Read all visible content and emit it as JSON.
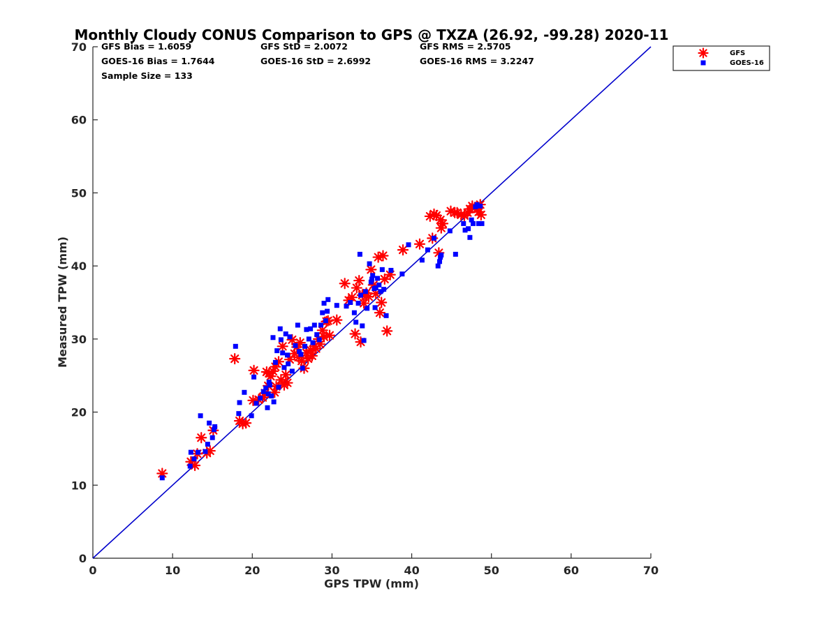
{
  "chart_data": {
    "type": "scatter",
    "title": "Monthly Cloudy CONUS Comparison to GPS @ TXZA (26.92, -99.28) 2020-11",
    "xlabel": "GPS TPW (mm)",
    "ylabel": "Measured TPW (mm)",
    "xlim": [
      0,
      70
    ],
    "ylim": [
      0,
      70
    ],
    "xticks": [
      "0",
      "10",
      "20",
      "30",
      "40",
      "50",
      "60",
      "70"
    ],
    "yticks": [
      "0",
      "10",
      "20",
      "30",
      "40",
      "50",
      "60",
      "70"
    ],
    "grid": false,
    "legend_position": "top-right (outside plot)",
    "stats": [
      "GFS Bias = 1.6059",
      "GFS StD = 2.0072",
      "GFS RMS = 2.5705",
      "GOES-16 Bias = 1.7644",
      "GOES-16 StD = 2.6992",
      "GOES-16 RMS = 3.2247",
      "Sample Size = 133"
    ],
    "reference_line": {
      "x": [
        0,
        70
      ],
      "y": [
        0,
        70
      ],
      "color": "#0000cc"
    },
    "series": [
      {
        "name": "GFS",
        "marker": "asterisk",
        "color": "#ff0000",
        "points": [
          [
            8.7,
            11.6
          ],
          [
            12.3,
            13.2
          ],
          [
            12.8,
            12.7
          ],
          [
            13.1,
            14.3
          ],
          [
            13.6,
            16.5
          ],
          [
            14.3,
            14.4
          ],
          [
            14.7,
            14.7
          ],
          [
            15.1,
            17.5
          ],
          [
            17.8,
            27.3
          ],
          [
            18.4,
            18.8
          ],
          [
            18.8,
            18.4
          ],
          [
            19.2,
            18.5
          ],
          [
            20.1,
            21.6
          ],
          [
            20.2,
            25.7
          ],
          [
            20.8,
            21.7
          ],
          [
            21.3,
            22.0
          ],
          [
            21.6,
            22.6
          ],
          [
            21.8,
            25.5
          ],
          [
            22.0,
            23.6
          ],
          [
            22.1,
            25.3
          ],
          [
            22.3,
            24.9
          ],
          [
            22.6,
            25.6
          ],
          [
            22.8,
            22.7
          ],
          [
            22.9,
            26.2
          ],
          [
            23.0,
            23.5
          ],
          [
            23.3,
            26.9
          ],
          [
            23.6,
            24.4
          ],
          [
            23.8,
            29.0
          ],
          [
            24.0,
            23.7
          ],
          [
            24.2,
            25.1
          ],
          [
            24.4,
            24.0
          ],
          [
            24.7,
            27.2
          ],
          [
            25.0,
            29.9
          ],
          [
            25.3,
            28.0
          ],
          [
            25.6,
            28.9
          ],
          [
            25.8,
            27.5
          ],
          [
            26.0,
            29.5
          ],
          [
            26.2,
            27.0
          ],
          [
            26.5,
            26.0
          ],
          [
            26.8,
            28.1
          ],
          [
            27.0,
            27.3
          ],
          [
            27.3,
            28.5
          ],
          [
            27.5,
            27.7
          ],
          [
            27.8,
            29.0
          ],
          [
            28.0,
            28.7
          ],
          [
            28.3,
            30.0
          ],
          [
            28.5,
            29.3
          ],
          [
            28.8,
            31.2
          ],
          [
            29.0,
            30.3
          ],
          [
            29.3,
            32.4
          ],
          [
            29.5,
            32.5
          ],
          [
            29.7,
            30.5
          ],
          [
            30.6,
            32.6
          ],
          [
            31.6,
            37.6
          ],
          [
            32.1,
            35.3
          ],
          [
            32.5,
            35.7
          ],
          [
            32.9,
            30.7
          ],
          [
            33.1,
            37.0
          ],
          [
            33.4,
            38.0
          ],
          [
            33.6,
            29.6
          ],
          [
            33.8,
            36.0
          ],
          [
            34.0,
            34.9
          ],
          [
            34.3,
            36.3
          ],
          [
            34.6,
            35.8
          ],
          [
            34.9,
            39.5
          ],
          [
            35.2,
            37.4
          ],
          [
            35.5,
            36.2
          ],
          [
            35.8,
            41.2
          ],
          [
            36.0,
            33.6
          ],
          [
            36.2,
            35.0
          ],
          [
            36.4,
            41.4
          ],
          [
            36.6,
            38.2
          ],
          [
            36.9,
            31.1
          ],
          [
            37.3,
            38.8
          ],
          [
            38.9,
            42.2
          ],
          [
            41.0,
            43.0
          ],
          [
            42.3,
            46.8
          ],
          [
            42.6,
            43.8
          ],
          [
            42.8,
            47.1
          ],
          [
            43.1,
            46.9
          ],
          [
            43.4,
            41.8
          ],
          [
            43.6,
            46.3
          ],
          [
            43.7,
            45.2
          ],
          [
            43.9,
            45.8
          ],
          [
            44.9,
            47.5
          ],
          [
            45.4,
            47.3
          ],
          [
            45.7,
            47.3
          ],
          [
            46.2,
            47.0
          ],
          [
            46.6,
            46.9
          ],
          [
            47.0,
            47.3
          ],
          [
            47.3,
            47.8
          ],
          [
            47.6,
            48.2
          ],
          [
            47.9,
            48.0
          ],
          [
            48.2,
            47.8
          ],
          [
            48.4,
            47.4
          ],
          [
            48.6,
            48.4
          ],
          [
            48.7,
            47.0
          ]
        ]
      },
      {
        "name": "GOES-16",
        "marker": "square",
        "color": "#0000ff",
        "points": [
          [
            8.7,
            11.0
          ],
          [
            12.2,
            12.6
          ],
          [
            12.3,
            14.5
          ],
          [
            12.7,
            13.6
          ],
          [
            13.2,
            14.5
          ],
          [
            13.5,
            19.5
          ],
          [
            14.1,
            14.6
          ],
          [
            14.4,
            15.6
          ],
          [
            14.6,
            18.5
          ],
          [
            15.0,
            16.5
          ],
          [
            15.2,
            17.6
          ],
          [
            15.3,
            18.0
          ],
          [
            17.9,
            29.0
          ],
          [
            18.3,
            19.8
          ],
          [
            18.4,
            21.3
          ],
          [
            19.0,
            22.7
          ],
          [
            19.9,
            19.5
          ],
          [
            20.2,
            24.8
          ],
          [
            20.5,
            21.2
          ],
          [
            21.0,
            21.9
          ],
          [
            21.4,
            22.8
          ],
          [
            21.7,
            23.3
          ],
          [
            21.9,
            20.6
          ],
          [
            22.0,
            22.5
          ],
          [
            22.1,
            24.1
          ],
          [
            22.2,
            23.7
          ],
          [
            22.4,
            22.2
          ],
          [
            22.6,
            30.2
          ],
          [
            22.7,
            21.4
          ],
          [
            22.9,
            26.8
          ],
          [
            23.1,
            28.4
          ],
          [
            23.3,
            23.4
          ],
          [
            23.5,
            31.4
          ],
          [
            23.6,
            29.9
          ],
          [
            23.8,
            28.1
          ],
          [
            24.0,
            26.1
          ],
          [
            24.2,
            30.7
          ],
          [
            24.4,
            27.8
          ],
          [
            24.5,
            26.6
          ],
          [
            24.7,
            30.3
          ],
          [
            25.0,
            25.6
          ],
          [
            25.4,
            29.1
          ],
          [
            25.7,
            31.9
          ],
          [
            25.9,
            28.3
          ],
          [
            26.1,
            27.9
          ],
          [
            26.3,
            26.0
          ],
          [
            26.6,
            29.0
          ],
          [
            26.8,
            31.3
          ],
          [
            27.1,
            30.0
          ],
          [
            27.3,
            31.4
          ],
          [
            27.6,
            29.5
          ],
          [
            27.8,
            31.9
          ],
          [
            28.1,
            30.6
          ],
          [
            28.4,
            29.9
          ],
          [
            28.6,
            31.9
          ],
          [
            28.8,
            33.6
          ],
          [
            29.0,
            34.9
          ],
          [
            29.2,
            32.5
          ],
          [
            29.4,
            33.8
          ],
          [
            29.5,
            35.4
          ],
          [
            30.6,
            34.6
          ],
          [
            31.8,
            34.5
          ],
          [
            32.3,
            35.0
          ],
          [
            32.8,
            33.6
          ],
          [
            33.0,
            32.3
          ],
          [
            33.3,
            34.9
          ],
          [
            33.5,
            41.6
          ],
          [
            33.6,
            36.0
          ],
          [
            33.8,
            31.8
          ],
          [
            34.0,
            29.8
          ],
          [
            34.2,
            36.5
          ],
          [
            34.4,
            34.2
          ],
          [
            34.7,
            40.3
          ],
          [
            34.9,
            37.8
          ],
          [
            35.0,
            38.2
          ],
          [
            35.1,
            38.7
          ],
          [
            35.3,
            36.9
          ],
          [
            35.4,
            34.3
          ],
          [
            35.5,
            37.0
          ],
          [
            35.7,
            38.3
          ],
          [
            35.9,
            37.4
          ],
          [
            36.1,
            36.5
          ],
          [
            36.3,
            39.5
          ],
          [
            36.5,
            36.8
          ],
          [
            36.8,
            33.2
          ],
          [
            37.4,
            39.4
          ],
          [
            38.8,
            38.9
          ],
          [
            39.6,
            42.9
          ],
          [
            41.3,
            40.8
          ],
          [
            42.0,
            42.2
          ],
          [
            42.8,
            43.8
          ],
          [
            43.3,
            40.0
          ],
          [
            43.5,
            40.6
          ],
          [
            43.6,
            41.2
          ],
          [
            43.7,
            41.5
          ],
          [
            44.8,
            44.8
          ],
          [
            45.5,
            41.6
          ],
          [
            46.5,
            45.8
          ],
          [
            46.7,
            44.9
          ],
          [
            47.1,
            45.1
          ],
          [
            47.3,
            43.9
          ],
          [
            47.5,
            46.3
          ],
          [
            47.7,
            45.8
          ],
          [
            48.0,
            48.1
          ],
          [
            48.2,
            48.4
          ],
          [
            48.4,
            45.8
          ],
          [
            48.6,
            48.2
          ],
          [
            48.8,
            45.8
          ]
        ]
      }
    ]
  }
}
